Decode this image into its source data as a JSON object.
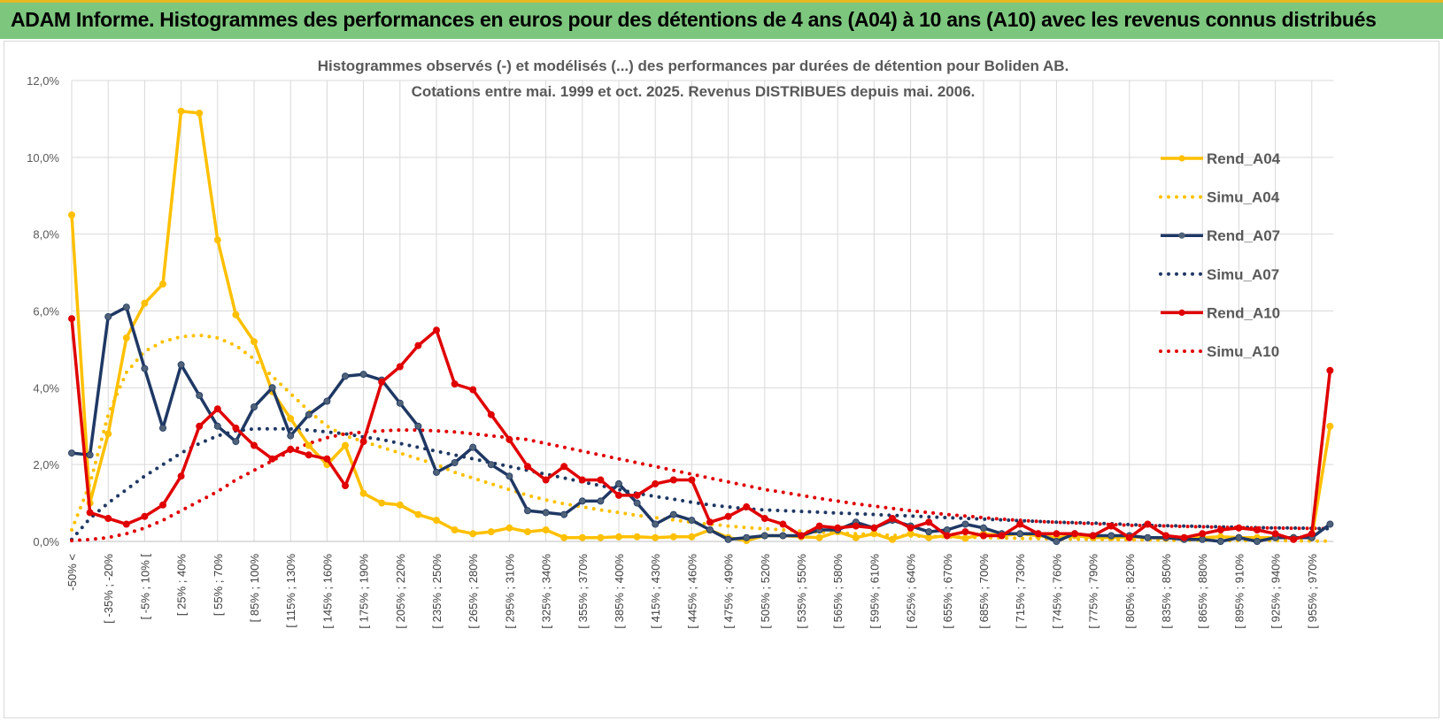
{
  "header": {
    "title": "ADAM Informe. Histogrammes des performances en euros pour des détentions de 4 ans (A04) à 10 ans (A10) avec les revenus connus distribués"
  },
  "chart_data": {
    "type": "line",
    "title_line1": "Histogrammes observés (-) et modélisés (...) des performances par durées de détention pour Boliden AB.",
    "title_line2": "Cotations entre mai. 1999 et oct. 2025. Revenus DISTRIBUES depuis mai. 2006.",
    "xlabel": "",
    "ylabel": "",
    "ylim": [
      0,
      12
    ],
    "y_ticks": [
      0,
      2,
      4,
      6,
      8,
      10,
      12
    ],
    "y_tick_labels": [
      "0,0%",
      "2,0%",
      "4,0%",
      "6,0%",
      "8,0%",
      "10,0%",
      "12,0%"
    ],
    "legend_position": "right",
    "grid": true,
    "x_tick_labels": [
      "-50% <",
      "[ -35% ; -20%",
      "[ -5% ; 10% [",
      "[ 25% ; 40%",
      "[ 55% ; 70%",
      "[ 85% ; 100%",
      "[ 115% ; 130%",
      "[ 145% ; 160%",
      "[ 175% ; 190%",
      "[ 205% ; 220%",
      "[ 235% ; 250%",
      "[ 265% ; 280%",
      "[ 295% ; 310%",
      "[ 325% ; 340%",
      "[ 355% ; 370%",
      "[ 385% ; 400%",
      "[ 415% ; 430%",
      "[ 445% ; 460%",
      "[ 475% ; 490%",
      "[ 505% ; 520%",
      "[ 535% ; 550%",
      "[ 565% ; 580%",
      "[ 595% ; 610%",
      "[ 625% ; 640%",
      "[ 655% ; 670%",
      "[ 685% ; 700%",
      "[ 715% ; 730%",
      "[ 745% ; 760%",
      "[ 775% ; 790%",
      "[ 805% ; 820%",
      "[ 835% ; 850%",
      "[ 865% ; 880%",
      "[ 895% ; 910%",
      "[ 925% ; 940%",
      "[ 955% ; 970%"
    ],
    "n_points": 70,
    "series": [
      {
        "name": "Rend_A04",
        "style": "solid",
        "color": "#ffc000",
        "markers": true,
        "values": [
          8.5,
          1.0,
          2.8,
          5.3,
          6.2,
          6.7,
          11.2,
          11.15,
          7.85,
          5.9,
          5.2,
          3.9,
          3.2,
          2.5,
          2.0,
          2.5,
          1.25,
          1.0,
          0.95,
          0.7,
          0.55,
          0.3,
          0.2,
          0.25,
          0.35,
          0.25,
          0.3,
          0.1,
          0.1,
          0.1,
          0.12,
          0.12,
          0.1,
          0.12,
          0.12,
          0.3,
          0.1,
          0.02,
          0.15,
          0.15,
          0.12,
          0.1,
          0.25,
          0.1,
          0.2,
          0.05,
          0.2,
          0.1,
          0.15,
          0.08,
          0.2,
          0.15,
          0.2,
          0.15,
          0.1,
          0.15,
          0.1,
          0.1,
          0.12,
          0.1,
          0.08,
          0.1,
          0.1,
          0.12,
          0.1,
          0.1,
          0.1,
          0.1,
          0.1,
          3.0
        ]
      },
      {
        "name": "Simu_A04",
        "style": "dotted",
        "color": "#ffc000",
        "markers": false,
        "values": [
          0.3,
          1.5,
          3.3,
          4.4,
          4.95,
          5.2,
          5.33,
          5.37,
          5.3,
          5.1,
          4.75,
          4.3,
          3.85,
          3.4,
          3.0,
          2.75,
          2.6,
          2.45,
          2.3,
          2.15,
          2.0,
          1.8,
          1.65,
          1.5,
          1.35,
          1.2,
          1.08,
          0.98,
          0.9,
          0.82,
          0.75,
          0.68,
          0.62,
          0.56,
          0.5,
          0.45,
          0.4,
          0.36,
          0.33,
          0.3,
          0.27,
          0.24,
          0.22,
          0.2,
          0.18,
          0.16,
          0.14,
          0.13,
          0.12,
          0.11,
          0.1,
          0.09,
          0.08,
          0.07,
          0.06,
          0.06,
          0.05,
          0.05,
          0.04,
          0.04,
          0.03,
          0.03,
          0.03,
          0.02,
          0.02,
          0.02,
          0.02,
          0.02,
          0.01,
          0.01
        ]
      },
      {
        "name": "Rend_A07",
        "style": "solid",
        "color": "#1f3864",
        "markers": true,
        "values": [
          2.3,
          2.25,
          5.85,
          6.1,
          4.5,
          2.95,
          4.6,
          3.8,
          3.0,
          2.6,
          3.5,
          4.0,
          2.75,
          3.3,
          3.65,
          4.3,
          4.35,
          4.2,
          3.6,
          3.0,
          1.8,
          2.05,
          2.45,
          2.0,
          1.7,
          0.8,
          0.75,
          0.7,
          1.05,
          1.05,
          1.5,
          1.0,
          0.45,
          0.7,
          0.55,
          0.3,
          0.05,
          0.1,
          0.15,
          0.15,
          0.15,
          0.3,
          0.3,
          0.5,
          0.35,
          0.55,
          0.4,
          0.25,
          0.3,
          0.45,
          0.35,
          0.2,
          0.2,
          0.2,
          0.0,
          0.2,
          0.15,
          0.15,
          0.15,
          0.1,
          0.1,
          0.05,
          0.05,
          0.0,
          0.1,
          0.0,
          0.1,
          0.1,
          0.1,
          0.45
        ]
      },
      {
        "name": "Simu_A07",
        "style": "dotted",
        "color": "#1f3864",
        "markers": false,
        "values": [
          0.05,
          0.6,
          1.0,
          1.35,
          1.7,
          2.0,
          2.3,
          2.55,
          2.75,
          2.88,
          2.93,
          2.93,
          2.93,
          2.9,
          2.85,
          2.8,
          2.72,
          2.65,
          2.55,
          2.45,
          2.35,
          2.25,
          2.15,
          2.05,
          1.95,
          1.85,
          1.75,
          1.65,
          1.55,
          1.45,
          1.35,
          1.25,
          1.17,
          1.1,
          1.02,
          0.95,
          0.9,
          0.85,
          0.82,
          0.8,
          0.78,
          0.76,
          0.74,
          0.72,
          0.7,
          0.68,
          0.66,
          0.64,
          0.62,
          0.6,
          0.58,
          0.56,
          0.54,
          0.52,
          0.5,
          0.49,
          0.48,
          0.46,
          0.44,
          0.42,
          0.41,
          0.4,
          0.39,
          0.38,
          0.37,
          0.36,
          0.35,
          0.35,
          0.34,
          0.33
        ]
      },
      {
        "name": "Rend_A10",
        "style": "solid",
        "color": "#e00000",
        "markers": true,
        "values": [
          5.8,
          0.75,
          0.6,
          0.45,
          0.65,
          0.95,
          1.7,
          3.0,
          3.45,
          2.95,
          2.5,
          2.15,
          2.4,
          2.25,
          2.15,
          1.45,
          2.6,
          4.15,
          4.55,
          5.1,
          5.5,
          4.1,
          3.95,
          3.3,
          2.65,
          1.95,
          1.6,
          1.95,
          1.6,
          1.6,
          1.2,
          1.2,
          1.5,
          1.6,
          1.6,
          0.5,
          0.65,
          0.9,
          0.6,
          0.45,
          0.15,
          0.4,
          0.35,
          0.4,
          0.35,
          0.6,
          0.35,
          0.5,
          0.15,
          0.25,
          0.15,
          0.15,
          0.45,
          0.2,
          0.2,
          0.2,
          0.15,
          0.4,
          0.1,
          0.45,
          0.15,
          0.1,
          0.2,
          0.3,
          0.35,
          0.3,
          0.2,
          0.05,
          0.2,
          4.45
        ]
      },
      {
        "name": "Simu_A10",
        "style": "dotted",
        "color": "#e00000",
        "markers": false,
        "values": [
          0.02,
          0.05,
          0.1,
          0.2,
          0.35,
          0.55,
          0.8,
          1.05,
          1.3,
          1.6,
          1.85,
          2.1,
          2.35,
          2.55,
          2.7,
          2.8,
          2.85,
          2.88,
          2.9,
          2.9,
          2.88,
          2.85,
          2.8,
          2.75,
          2.7,
          2.65,
          2.55,
          2.45,
          2.35,
          2.25,
          2.15,
          2.05,
          1.95,
          1.85,
          1.75,
          1.65,
          1.55,
          1.45,
          1.35,
          1.28,
          1.2,
          1.12,
          1.05,
          0.98,
          0.92,
          0.86,
          0.8,
          0.75,
          0.7,
          0.66,
          0.62,
          0.58,
          0.55,
          0.52,
          0.5,
          0.48,
          0.46,
          0.44,
          0.42,
          0.41,
          0.4,
          0.39,
          0.38,
          0.37,
          0.36,
          0.35,
          0.35,
          0.34,
          0.34,
          0.33
        ]
      }
    ]
  }
}
